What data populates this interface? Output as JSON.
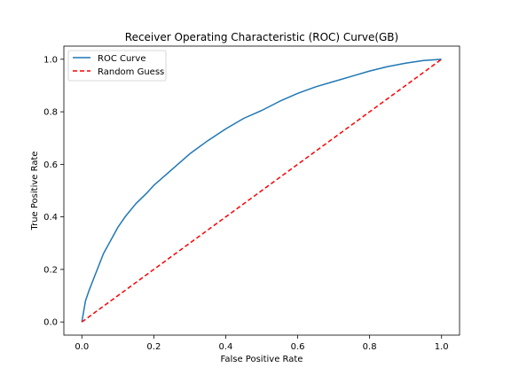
{
  "chart_data": {
    "type": "line",
    "title": "Receiver Operating Characteristic (ROC) Curve(GB)",
    "xlabel": "False Positive Rate",
    "ylabel": "True Positive Rate",
    "xlim": [
      -0.05,
      1.05
    ],
    "ylim": [
      -0.05,
      1.05
    ],
    "xticks": [
      "0.0",
      "0.2",
      "0.4",
      "0.6",
      "0.8",
      "1.0"
    ],
    "yticks": [
      "0.0",
      "0.2",
      "0.4",
      "0.6",
      "0.8",
      "1.0"
    ],
    "grid": false,
    "legend": "upper-left",
    "series": [
      {
        "name": "ROC Curve",
        "color": "#1f77b4",
        "style": "solid",
        "x": [
          0.0,
          0.005,
          0.01,
          0.02,
          0.04,
          0.06,
          0.08,
          0.1,
          0.12,
          0.15,
          0.18,
          0.2,
          0.25,
          0.3,
          0.35,
          0.4,
          0.45,
          0.5,
          0.55,
          0.6,
          0.65,
          0.7,
          0.75,
          0.8,
          0.85,
          0.9,
          0.95,
          1.0
        ],
        "y": [
          0.0,
          0.04,
          0.08,
          0.12,
          0.19,
          0.26,
          0.31,
          0.36,
          0.4,
          0.45,
          0.49,
          0.52,
          0.58,
          0.64,
          0.69,
          0.735,
          0.775,
          0.805,
          0.84,
          0.87,
          0.895,
          0.915,
          0.935,
          0.955,
          0.972,
          0.985,
          0.995,
          1.0
        ]
      },
      {
        "name": "Random Guess",
        "color": "#ff0000",
        "style": "dashed",
        "x": [
          0.0,
          1.0
        ],
        "y": [
          0.0,
          1.0
        ]
      }
    ]
  }
}
